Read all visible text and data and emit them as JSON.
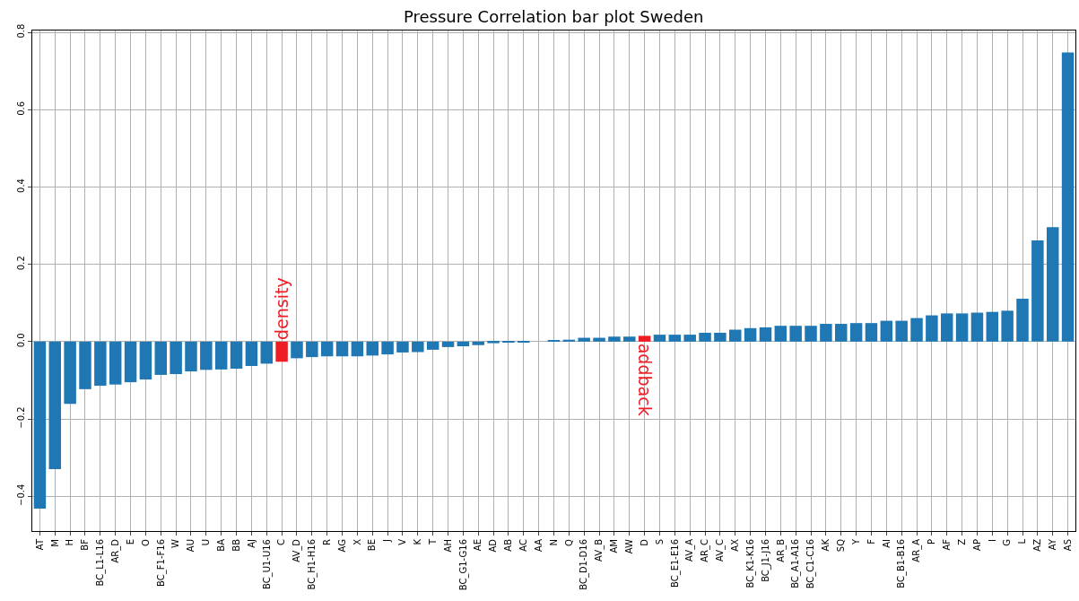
{
  "chart_data": {
    "type": "bar",
    "title": "Pressure Correlation bar plot Sweden",
    "categories": [
      "AT",
      "M",
      "H",
      "BF",
      "BC_L1-L16",
      "AR_D",
      "E",
      "O",
      "BC_F1-F16",
      "W",
      "AU",
      "U",
      "BA",
      "BB",
      "AJ",
      "BC_U1-U16",
      "C",
      "AV_D",
      "BC_H1-H16",
      "R",
      "AG",
      "X",
      "BE",
      "J",
      "V",
      "K",
      "T",
      "AH",
      "BC_G1-G16",
      "AE",
      "AD",
      "AB",
      "AC",
      "AA",
      "N",
      "Q",
      "BC_D1-D16",
      "AV_B",
      "AM",
      "AW",
      "D",
      "S",
      "BC_E1-E16",
      "AV_A",
      "AR_C",
      "AV_C",
      "AX",
      "BC_K1-K16",
      "BC_J1-J16",
      "AR_B",
      "BC_A1-A16",
      "BC_C1-C16",
      "AK",
      "SQ",
      "Y",
      "F",
      "AI",
      "BC_B1-B16",
      "AR_A",
      "P",
      "AF",
      "Z",
      "AP",
      "I",
      "G",
      "L",
      "AZ",
      "AY",
      "AS"
    ],
    "values": [
      -0.432,
      -0.33,
      -0.161,
      -0.123,
      -0.114,
      -0.111,
      -0.105,
      -0.098,
      -0.086,
      -0.084,
      -0.077,
      -0.073,
      -0.072,
      -0.07,
      -0.063,
      -0.057,
      -0.052,
      -0.043,
      -0.04,
      -0.038,
      -0.038,
      -0.038,
      -0.036,
      -0.033,
      -0.028,
      -0.027,
      -0.021,
      -0.014,
      -0.012,
      -0.009,
      -0.004,
      -0.001,
      -0.001,
      0.0,
      0.003,
      0.005,
      0.01,
      0.01,
      0.013,
      0.013,
      0.015,
      0.018,
      0.018,
      0.018,
      0.023,
      0.023,
      0.031,
      0.035,
      0.037,
      0.041,
      0.041,
      0.041,
      0.046,
      0.046,
      0.048,
      0.048,
      0.054,
      0.054,
      0.061,
      0.068,
      0.073,
      0.073,
      0.075,
      0.077,
      0.08,
      0.111,
      0.262,
      0.296,
      0.748
    ],
    "colors": [
      "#1f77b4",
      "#1f77b4",
      "#1f77b4",
      "#1f77b4",
      "#1f77b4",
      "#1f77b4",
      "#1f77b4",
      "#1f77b4",
      "#1f77b4",
      "#1f77b4",
      "#1f77b4",
      "#1f77b4",
      "#1f77b4",
      "#1f77b4",
      "#1f77b4",
      "#1f77b4",
      "#ee1c25",
      "#1f77b4",
      "#1f77b4",
      "#1f77b4",
      "#1f77b4",
      "#1f77b4",
      "#1f77b4",
      "#1f77b4",
      "#1f77b4",
      "#1f77b4",
      "#1f77b4",
      "#1f77b4",
      "#1f77b4",
      "#1f77b4",
      "#1f77b4",
      "#1f77b4",
      "#1f77b4",
      "#1f77b4",
      "#1f77b4",
      "#1f77b4",
      "#1f77b4",
      "#1f77b4",
      "#1f77b4",
      "#1f77b4",
      "#ee1c25",
      "#1f77b4",
      "#1f77b4",
      "#1f77b4",
      "#1f77b4",
      "#1f77b4",
      "#1f77b4",
      "#1f77b4",
      "#1f77b4",
      "#1f77b4",
      "#1f77b4",
      "#1f77b4",
      "#1f77b4",
      "#1f77b4",
      "#1f77b4",
      "#1f77b4",
      "#1f77b4",
      "#1f77b4",
      "#1f77b4",
      "#1f77b4",
      "#1f77b4",
      "#1f77b4",
      "#1f77b4",
      "#1f77b4",
      "#1f77b4",
      "#1f77b4",
      "#1f77b4",
      "#1f77b4",
      "#1f77b4"
    ],
    "ylim": [
      -0.49,
      0.805
    ],
    "yticks": [
      {
        "value": -0.4,
        "label": "−0.4"
      },
      {
        "value": -0.2,
        "label": "−0.2"
      },
      {
        "value": 0,
        "label": "0.0"
      },
      {
        "value": 0.2,
        "label": "0.2"
      },
      {
        "value": 0.4,
        "label": "0.4"
      },
      {
        "value": 0.6,
        "label": "0.6"
      },
      {
        "value": 0.8,
        "label": "0.8"
      }
    ],
    "grid": true,
    "annotations": [
      {
        "text": "density",
        "x": "C",
        "y": 0.0
      },
      {
        "text": "addback",
        "x": "D",
        "y": 0.0
      }
    ]
  }
}
